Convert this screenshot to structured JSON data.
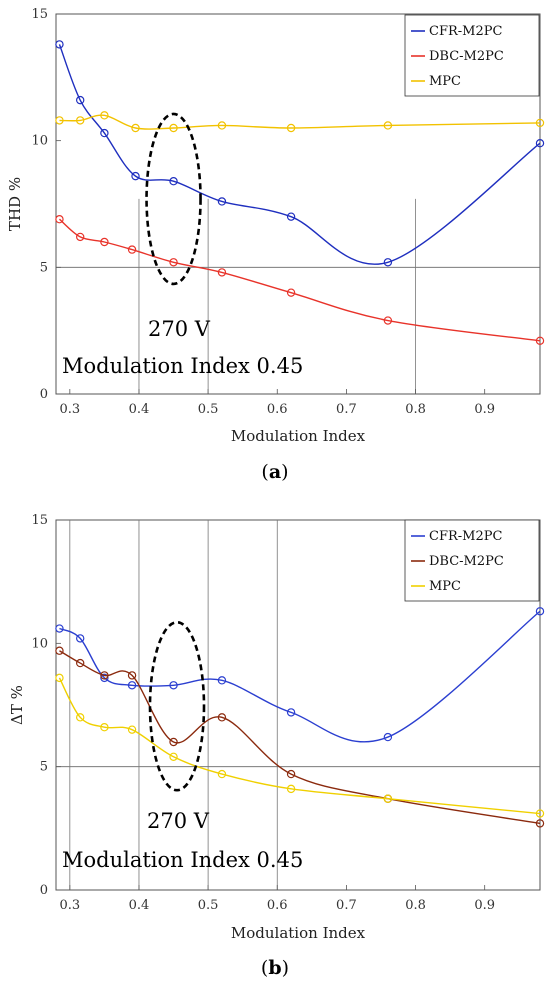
{
  "chart_data": [
    {
      "type": "line",
      "caption_letter": "a",
      "xlabel": "Modulation Index",
      "ylabel": "THD %",
      "xlim": [
        0.28,
        0.98
      ],
      "ylim": [
        0,
        15
      ],
      "xticks": [
        "0.3",
        "0.4",
        "0.5",
        "0.6",
        "0.7",
        "0.8",
        "0.9"
      ],
      "yticks": [
        "0",
        "5",
        "10",
        "15"
      ],
      "legend_position": "top-right",
      "reference_line_y": 5,
      "vertical_markers": [
        0.4,
        0.5,
        0.8
      ],
      "annotation_voltage": "270 V",
      "annotation_mi": "Modulation Index 0.45",
      "series": [
        {
          "name": "CFR-M2PC",
          "color": "#1f2fbf",
          "x": [
            0.285,
            0.315,
            0.35,
            0.395,
            0.45,
            0.52,
            0.62,
            0.76,
            0.98
          ],
          "y": [
            13.8,
            11.6,
            10.3,
            8.6,
            8.4,
            7.6,
            7.0,
            5.2,
            9.9
          ]
        },
        {
          "name": "DBC-M2PC",
          "color": "#e8332a",
          "x": [
            0.285,
            0.315,
            0.35,
            0.39,
            0.45,
            0.52,
            0.62,
            0.76,
            0.98
          ],
          "y": [
            6.9,
            6.2,
            6.0,
            5.7,
            5.2,
            4.8,
            4.0,
            2.9,
            2.1
          ]
        },
        {
          "name": "MPC",
          "color": "#f2c200",
          "x": [
            0.285,
            0.315,
            0.35,
            0.395,
            0.45,
            0.52,
            0.62,
            0.76,
            0.98
          ],
          "y": [
            10.8,
            10.8,
            11.0,
            10.5,
            10.5,
            10.6,
            10.5,
            10.6,
            10.7
          ]
        }
      ]
    },
    {
      "type": "line",
      "caption_letter": "b",
      "xlabel": "Modulation Index",
      "ylabel": "ΔT %",
      "xlim": [
        0.28,
        0.98
      ],
      "ylim": [
        0,
        15
      ],
      "xticks": [
        "0.3",
        "0.4",
        "0.5",
        "0.6",
        "0.7",
        "0.8",
        "0.9"
      ],
      "yticks": [
        "0",
        "5",
        "10",
        "15"
      ],
      "legend_position": "top-right",
      "reference_line_y": 5,
      "vertical_markers": [
        0.3,
        0.4,
        0.5,
        0.6
      ],
      "annotation_voltage": "270 V",
      "annotation_mi": "Modulation Index 0.45",
      "series": [
        {
          "name": "CFR-M2PC",
          "color": "#2b3fd0",
          "x": [
            0.285,
            0.315,
            0.35,
            0.39,
            0.45,
            0.52,
            0.62,
            0.76,
            0.98
          ],
          "y": [
            10.6,
            10.2,
            8.6,
            8.3,
            8.3,
            8.5,
            7.2,
            6.2,
            11.3
          ]
        },
        {
          "name": "DBC-M2PC",
          "color": "#8b2a0e",
          "x": [
            0.285,
            0.315,
            0.35,
            0.39,
            0.45,
            0.52,
            0.62,
            0.76,
            0.98
          ],
          "y": [
            9.7,
            9.2,
            8.7,
            8.7,
            6.0,
            7.0,
            4.7,
            3.7,
            2.7
          ]
        },
        {
          "name": "MPC",
          "color": "#f0d000",
          "x": [
            0.285,
            0.315,
            0.35,
            0.39,
            0.45,
            0.52,
            0.62,
            0.76,
            0.98
          ],
          "y": [
            8.6,
            7.0,
            6.6,
            6.5,
            5.4,
            4.7,
            4.1,
            3.7,
            3.1
          ]
        }
      ]
    }
  ]
}
